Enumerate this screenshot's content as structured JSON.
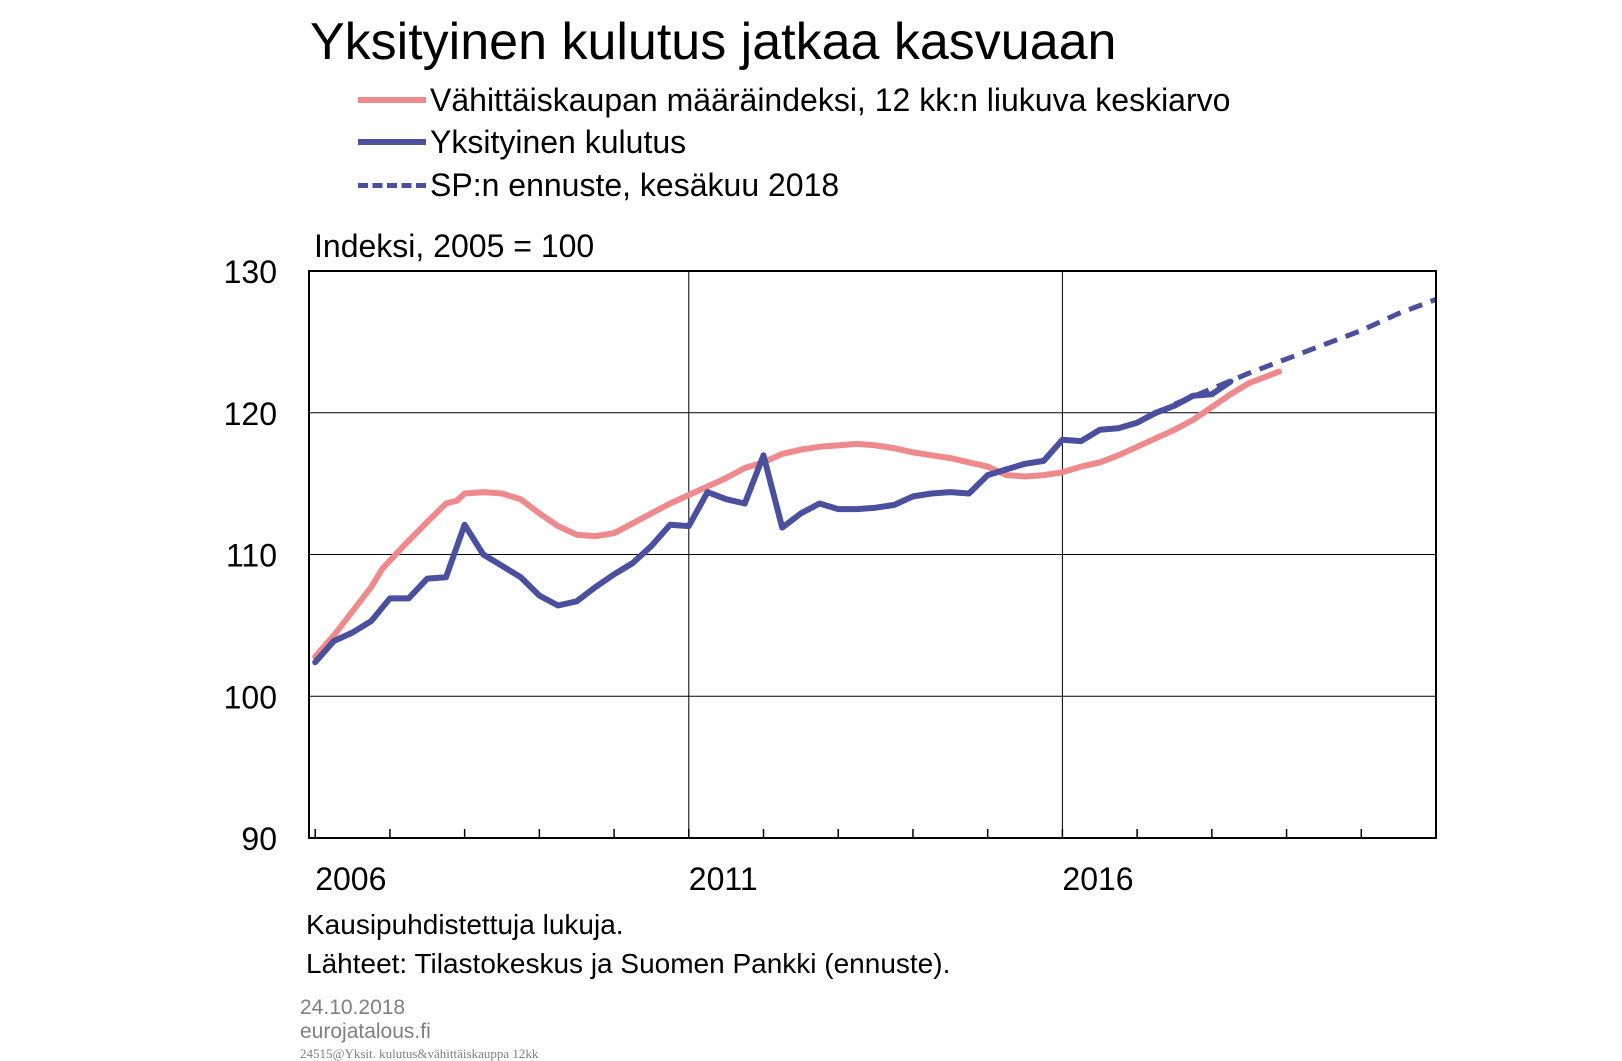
{
  "chart_data": {
    "type": "line",
    "title": "Yksityinen kulutus jatkaa kasvuaan",
    "ylabel": "Indeksi, 2005 = 100",
    "xlabel": "",
    "xlim": [
      2005.917,
      2021.0
    ],
    "ylim": [
      90,
      130
    ],
    "y_ticks": [
      90,
      100,
      110,
      120,
      130
    ],
    "x_tick_labels": [
      {
        "label": "2006",
        "x": 2006.0
      },
      {
        "label": "2011",
        "x": 2011.0
      },
      {
        "label": "2016",
        "x": 2016.0
      }
    ],
    "grid": true,
    "legend_position": "top",
    "series": [
      {
        "name": "Vähittäiskaupan määräindeksi, 12 kk:n liukuva keskiarvo",
        "color": "#ef8a8c",
        "style": "solid",
        "points": [
          [
            2006.0,
            102.8
          ],
          [
            2006.25,
            104.3
          ],
          [
            2006.5,
            106.0
          ],
          [
            2006.75,
            107.7
          ],
          [
            2006.9,
            109.0
          ],
          [
            2007.2,
            110.7
          ],
          [
            2007.5,
            112.3
          ],
          [
            2007.75,
            113.6
          ],
          [
            2007.9,
            113.8
          ],
          [
            2008.0,
            114.3
          ],
          [
            2008.25,
            114.4
          ],
          [
            2008.5,
            114.3
          ],
          [
            2008.75,
            113.9
          ],
          [
            2009.0,
            112.9
          ],
          [
            2009.25,
            112.0
          ],
          [
            2009.5,
            111.4
          ],
          [
            2009.75,
            111.3
          ],
          [
            2010.0,
            111.5
          ],
          [
            2010.25,
            112.2
          ],
          [
            2010.5,
            112.9
          ],
          [
            2010.75,
            113.6
          ],
          [
            2011.0,
            114.2
          ],
          [
            2011.25,
            114.8
          ],
          [
            2011.5,
            115.4
          ],
          [
            2011.75,
            116.1
          ],
          [
            2012.0,
            116.5
          ],
          [
            2012.25,
            117.1
          ],
          [
            2012.5,
            117.4
          ],
          [
            2012.75,
            117.6
          ],
          [
            2013.0,
            117.7
          ],
          [
            2013.25,
            117.8
          ],
          [
            2013.5,
            117.7
          ],
          [
            2013.75,
            117.5
          ],
          [
            2014.0,
            117.2
          ],
          [
            2014.25,
            117.0
          ],
          [
            2014.5,
            116.8
          ],
          [
            2014.75,
            116.5
          ],
          [
            2015.0,
            116.2
          ],
          [
            2015.25,
            115.6
          ],
          [
            2015.5,
            115.5
          ],
          [
            2015.75,
            115.6
          ],
          [
            2016.0,
            115.8
          ],
          [
            2016.25,
            116.2
          ],
          [
            2016.5,
            116.5
          ],
          [
            2016.75,
            117.0
          ],
          [
            2017.0,
            117.6
          ],
          [
            2017.25,
            118.2
          ],
          [
            2017.5,
            118.8
          ],
          [
            2017.75,
            119.5
          ],
          [
            2018.0,
            120.4
          ],
          [
            2018.25,
            121.3
          ],
          [
            2018.5,
            122.1
          ],
          [
            2018.75,
            122.6
          ],
          [
            2018.9,
            122.9
          ]
        ]
      },
      {
        "name": "Yksityinen kulutus",
        "color": "#4a4f9e",
        "style": "solid",
        "points": [
          [
            2006.0,
            102.4
          ],
          [
            2006.25,
            103.9
          ],
          [
            2006.5,
            104.5
          ],
          [
            2006.75,
            105.3
          ],
          [
            2007.0,
            106.9
          ],
          [
            2007.25,
            106.9
          ],
          [
            2007.5,
            108.3
          ],
          [
            2007.75,
            108.4
          ],
          [
            2008.0,
            112.1
          ],
          [
            2008.25,
            110.0
          ],
          [
            2008.5,
            109.2
          ],
          [
            2008.75,
            108.4
          ],
          [
            2009.0,
            107.1
          ],
          [
            2009.25,
            106.4
          ],
          [
            2009.5,
            106.7
          ],
          [
            2009.75,
            107.7
          ],
          [
            2010.0,
            108.6
          ],
          [
            2010.25,
            109.4
          ],
          [
            2010.5,
            110.6
          ],
          [
            2010.75,
            112.1
          ],
          [
            2011.0,
            112.0
          ],
          [
            2011.25,
            114.4
          ],
          [
            2011.5,
            113.9
          ],
          [
            2011.75,
            113.6
          ],
          [
            2012.0,
            117.0
          ],
          [
            2012.25,
            111.9
          ],
          [
            2012.5,
            112.9
          ],
          [
            2012.75,
            113.6
          ],
          [
            2013.0,
            113.2
          ],
          [
            2013.25,
            113.2
          ],
          [
            2013.5,
            113.3
          ],
          [
            2013.75,
            113.5
          ],
          [
            2014.0,
            114.1
          ],
          [
            2014.25,
            114.3
          ],
          [
            2014.5,
            114.4
          ],
          [
            2014.75,
            114.3
          ],
          [
            2015.0,
            115.6
          ],
          [
            2015.25,
            116.0
          ],
          [
            2015.5,
            116.4
          ],
          [
            2015.75,
            116.6
          ],
          [
            2016.0,
            118.1
          ],
          [
            2016.25,
            118.0
          ],
          [
            2016.5,
            118.8
          ],
          [
            2016.75,
            118.9
          ],
          [
            2017.0,
            119.3
          ],
          [
            2017.25,
            120.0
          ],
          [
            2017.5,
            120.5
          ],
          [
            2017.75,
            121.2
          ],
          [
            2018.0,
            121.3
          ],
          [
            2018.25,
            122.2
          ]
        ]
      },
      {
        "name": "SP:n ennuste, kesäkuu 2018",
        "color": "#4a4f9e",
        "style": "dashed",
        "points": [
          [
            2017.5,
            120.6
          ],
          [
            2018.0,
            121.7
          ],
          [
            2018.5,
            122.8
          ],
          [
            2019.0,
            123.8
          ],
          [
            2019.5,
            124.8
          ],
          [
            2020.0,
            125.8
          ],
          [
            2020.5,
            127.0
          ],
          [
            2021.0,
            128.0
          ]
        ]
      }
    ],
    "notes": [
      "Kausipuhdistettuja lukuja.",
      "Lähteet: Tilastokeskus ja Suomen Pankki (ennuste)."
    ]
  },
  "meta": {
    "date": "24.10.2018",
    "site": "eurojatalous.fi",
    "file": "24515@Yksit. kulutus&vähittäiskauppa 12kk"
  }
}
